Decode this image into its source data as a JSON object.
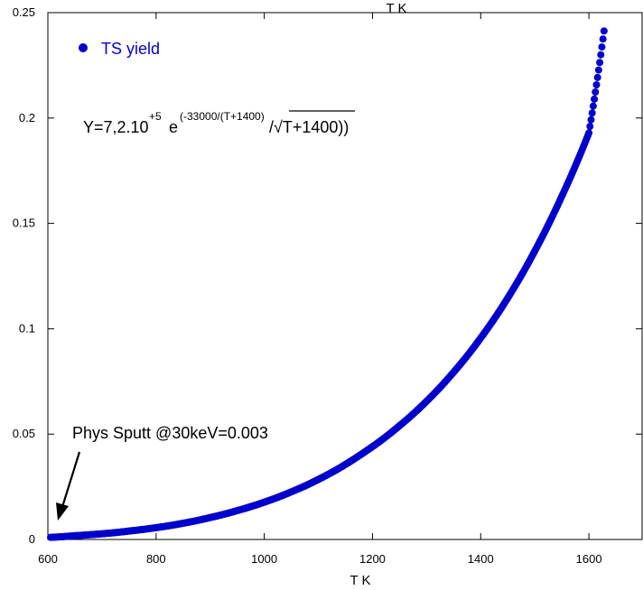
{
  "chart_data": {
    "type": "scatter",
    "xlabel": "T K",
    "top_label": "T K",
    "xlim": [
      600,
      1700
    ],
    "ylim": [
      0,
      0.25
    ],
    "x_ticks": [
      600,
      800,
      1000,
      1200,
      1400,
      1600
    ],
    "y_ticks": [
      0,
      0.05,
      0.1,
      0.15,
      0.2,
      0.25
    ],
    "grid": false,
    "legend": "top-left",
    "series": [
      {
        "name": "TS yield",
        "color": "#0000cc",
        "x": [
          605,
          650,
          700,
          750,
          800,
          850,
          900,
          950,
          1000,
          1050,
          1100,
          1150,
          1175,
          1190,
          1250,
          1300,
          1350,
          1400,
          1450,
          1500,
          1550,
          1600,
          1628
        ],
        "y": [
          0.001,
          0.0018,
          0.0027,
          0.004,
          0.0056,
          0.0077,
          0.0104,
          0.0137,
          0.0177,
          0.0226,
          0.0285,
          0.0356,
          0.0397,
          0.0423,
          0.054,
          0.0656,
          0.0794,
          0.0956,
          0.1146,
          0.1369,
          0.1629,
          0.1929,
          0.2413
        ]
      }
    ],
    "annotations": {
      "formula_main": "Y=7,2.10",
      "formula_exp1": "+5",
      "formula_e": "e",
      "formula_exp2": "(-33000/(T+1400)",
      "formula_tail": "/√T+1400))",
      "phys_sputt": "Phys Sputt @30keV=0.003"
    }
  }
}
